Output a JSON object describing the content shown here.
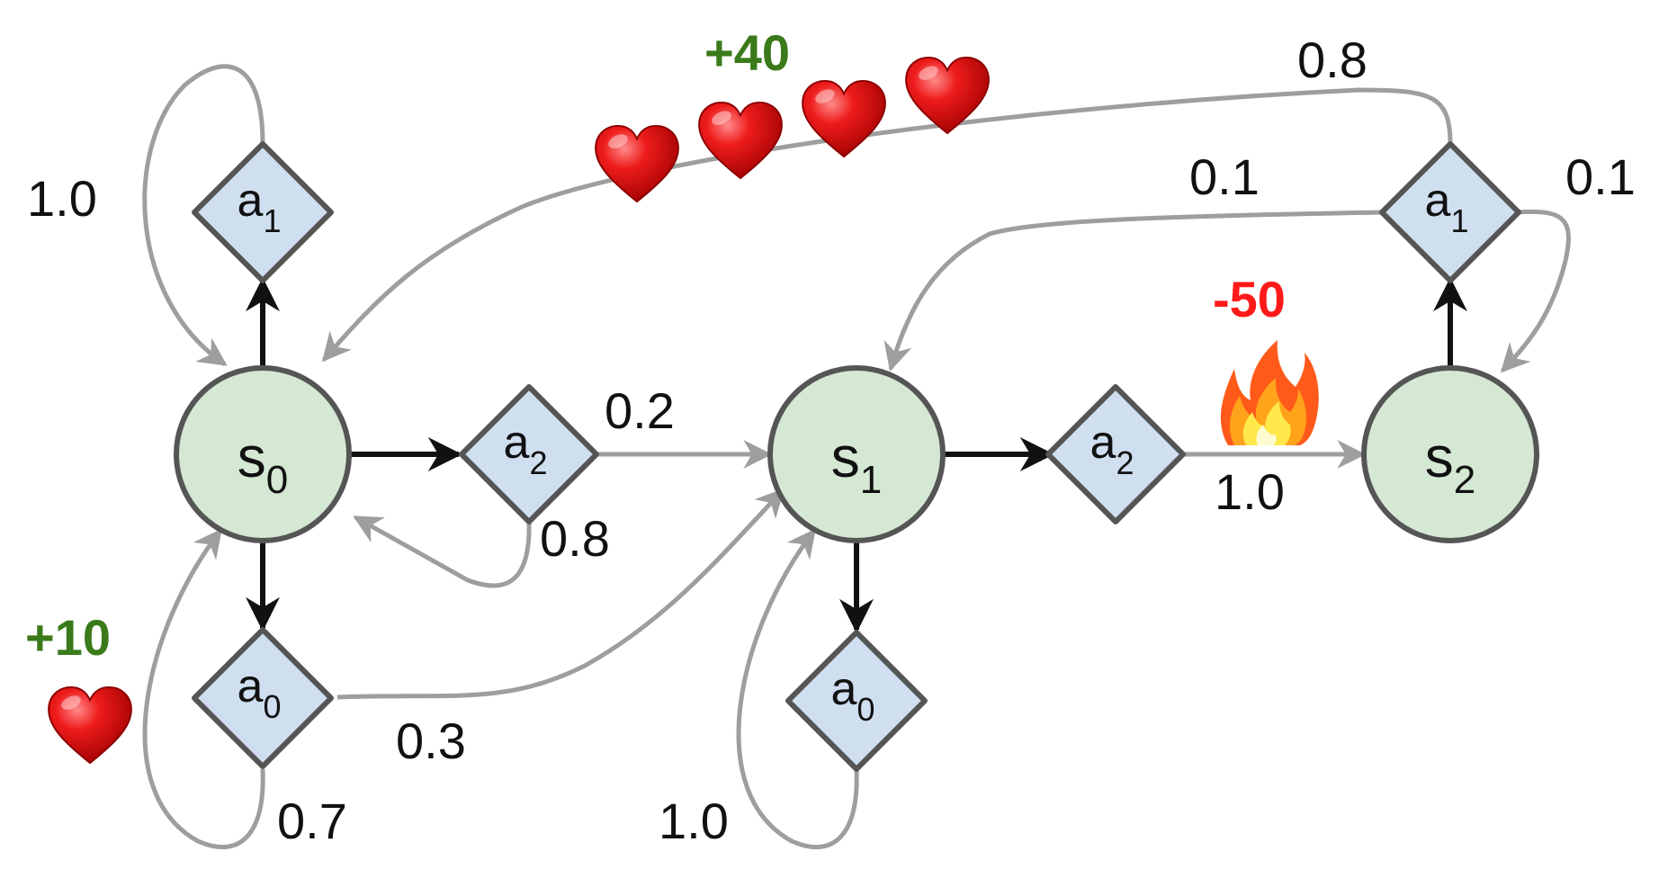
{
  "states": [
    {
      "id": "s0",
      "base": "s",
      "sub": "0"
    },
    {
      "id": "s1",
      "base": "s",
      "sub": "1"
    },
    {
      "id": "s2",
      "base": "s",
      "sub": "2"
    }
  ],
  "actions": [
    {
      "id": "s0_a1",
      "base": "a",
      "sub": "1"
    },
    {
      "id": "s0_a2",
      "base": "a",
      "sub": "2"
    },
    {
      "id": "s0_a0",
      "base": "a",
      "sub": "0"
    },
    {
      "id": "s1_a2",
      "base": "a",
      "sub": "2"
    },
    {
      "id": "s1_a0",
      "base": "a",
      "sub": "0"
    },
    {
      "id": "s2_a1",
      "base": "a",
      "sub": "1"
    }
  ],
  "transitions": [
    {
      "from": "s0_a1",
      "to": "s0",
      "prob": "1.0"
    },
    {
      "from": "s0_a2",
      "to": "s1",
      "prob": "0.2"
    },
    {
      "from": "s0_a2",
      "to": "s0",
      "prob": "0.8"
    },
    {
      "from": "s0_a0",
      "to": "s1",
      "prob": "0.3"
    },
    {
      "from": "s0_a0",
      "to": "s0",
      "prob": "0.7"
    },
    {
      "from": "s1_a0",
      "to": "s1",
      "prob": "1.0"
    },
    {
      "from": "s1_a2",
      "to": "s2",
      "prob": "1.0"
    },
    {
      "from": "s2_a1",
      "to": "s0",
      "prob": "0.8"
    },
    {
      "from": "s2_a1",
      "to": "s1",
      "prob": "0.1"
    },
    {
      "from": "s2_a1",
      "to": "s2",
      "prob": "0.1"
    }
  ],
  "rewards": [
    {
      "text": "+40",
      "color": "#3a7a1a",
      "icon": "heart-icon",
      "count": 4
    },
    {
      "text": "+10",
      "color": "#3a7a1a",
      "icon": "heart-icon",
      "count": 1
    },
    {
      "text": "-50",
      "color": "#ff1a1a",
      "icon": "fire-icon",
      "count": 1
    }
  ],
  "colors": {
    "state_fill": "#d5e8d4",
    "action_fill": "#cfdff0",
    "outline": "#555555",
    "decision_arrow": "#111111",
    "transition_arrow": "#9e9e9e"
  }
}
